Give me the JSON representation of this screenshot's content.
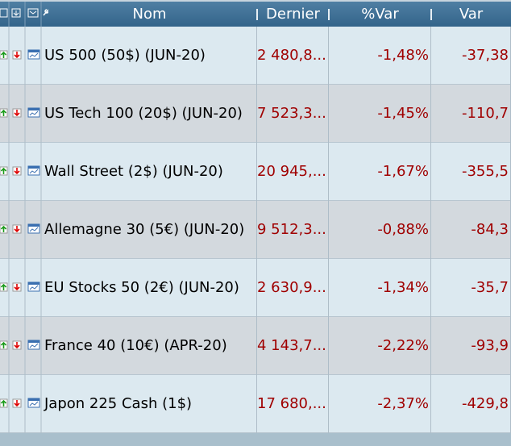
{
  "table": {
    "headers": [
      "Nom",
      "Dernier",
      "%Var",
      "Var"
    ],
    "rows": [
      [
        "US 500 (50$) (JUN-20)",
        "2 480,8...",
        "-1,48%",
        "-37,38"
      ],
      [
        "US Tech 100 (20$) (JUN-20)",
        "7 523,3...",
        "-1,45%",
        "-110,7"
      ],
      [
        "Wall Street (2$) (JUN-20)",
        "20 945,...",
        "-1,67%",
        "-355,5"
      ],
      [
        "Allemagne 30 (5€) (JUN-20)",
        "9 512,3...",
        "-0,88%",
        "-84,3"
      ],
      [
        "EU Stocks 50 (2€) (JUN-20)",
        "2 630,9...",
        "-1,34%",
        "-35,7"
      ],
      [
        "France 40 (10€) (APR-20)",
        "4 143,7...",
        "-2,22%",
        "-93,9"
      ],
      [
        "Japon 225 Cash (1$)",
        "17 680,...",
        "-2,37%",
        "-429,8"
      ]
    ]
  }
}
